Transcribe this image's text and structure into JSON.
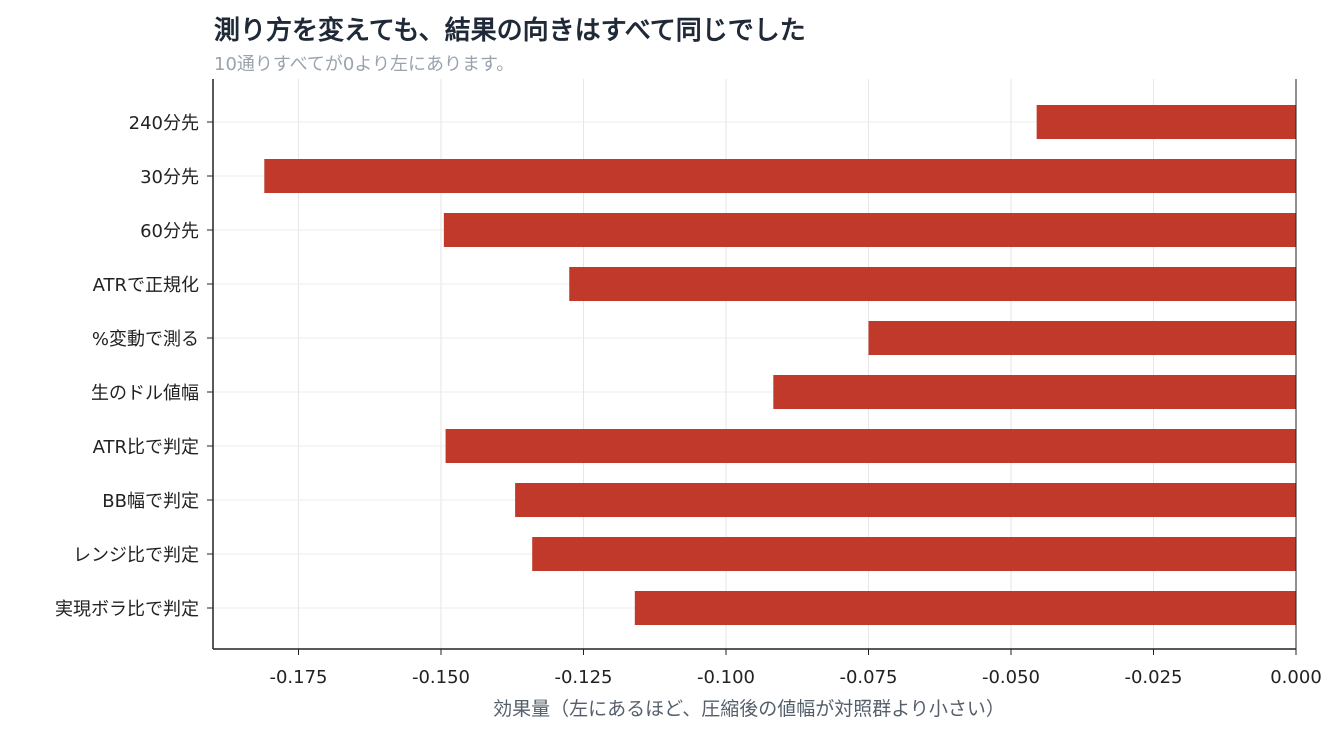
{
  "chart_data": {
    "type": "bar",
    "orientation": "horizontal",
    "title": "測り方を変えても、結果の向きはすべて同じでした",
    "subtitle": "10通りすべてが0より左にあります。",
    "xlabel": "効果量（左にあるほど、圧縮後の値幅が対照群より小さい）",
    "ylabel": "",
    "xlim": [
      -0.19,
      0.0
    ],
    "xticks": [
      -0.175,
      -0.15,
      -0.125,
      -0.1,
      -0.075,
      -0.05,
      -0.025,
      0.0
    ],
    "xtick_labels": [
      "-0.175",
      "-0.150",
      "-0.125",
      "-0.100",
      "-0.075",
      "-0.050",
      "-0.025",
      "0.000"
    ],
    "grid": true,
    "categories": [
      "240分先",
      "30分先",
      "60分先",
      "ATRで正規化",
      "%変動で測る",
      "生のドル値幅",
      "ATR比で判定",
      "BB幅で判定",
      "レンジ比で判定",
      "実現ボラ比で判定"
    ],
    "values": [
      -0.0455,
      -0.181,
      -0.1495,
      -0.1275,
      -0.075,
      -0.0917,
      -0.1492,
      -0.137,
      -0.134,
      -0.116
    ],
    "bar_color": "#c0392b"
  }
}
